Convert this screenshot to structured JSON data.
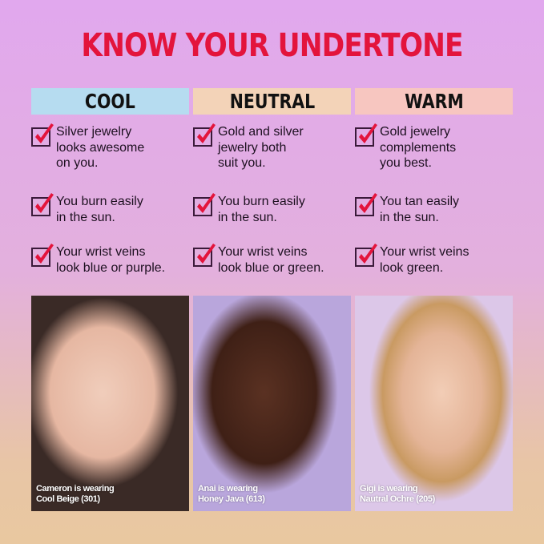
{
  "title": "KNOW YOUR UNDERTONE",
  "colors": {
    "title": "#e3143c",
    "cool": "#b6dcf0",
    "neutral": "#f3d3b8",
    "warm": "#f7c6c0",
    "check": "#e3143c"
  },
  "columns": [
    {
      "label": "COOL",
      "items": [
        "Silver jewelry\nlooks awesome\non you.",
        "You burn easily\nin the sun.",
        "Your wrist veins\nlook blue or purple."
      ],
      "caption": "Cameron is wearing\nCool Beige (301)"
    },
    {
      "label": "NEUTRAL",
      "items": [
        "Gold and silver\njewelry both\nsuit you.",
        "You burn easily\nin the sun.",
        "Your wrist veins\nlook blue or green."
      ],
      "caption": "Anai is wearing\nHoney Java (613)"
    },
    {
      "label": "WARM",
      "items": [
        "Gold jewelry\ncomplements\nyou best.",
        "You tan easily\nin the sun.",
        "Your wrist veins\nlook green."
      ],
      "caption": "Gigi is wearing\nNautral Ochre (205)"
    }
  ]
}
